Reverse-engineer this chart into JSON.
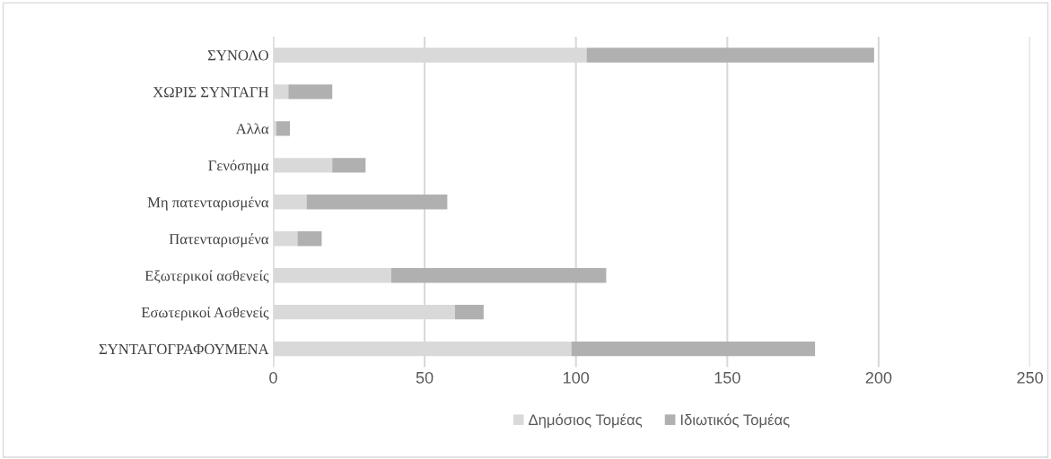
{
  "chart_data": {
    "type": "bar",
    "orientation": "horizontal",
    "stacked": true,
    "categories": [
      "ΣΥΝΟΛΟ",
      "ΧΩΡΙΣ ΣΥΝΤΑΓΗ",
      "Αλλα",
      "Γενόσημα",
      "Μη πατενταρισμένα",
      "Πατενταρισμένα",
      "Εξωτερικοί ασθενείς",
      "Εσωτερικοί Ασθενείς",
      "ΣΥΝΤΑΓΟΓΡΑΦΟΥΜΕΝΑ"
    ],
    "series": [
      {
        "name": "Δημόσιος Τομέας",
        "color": "#d9d9d9",
        "values": [
          103.5,
          5,
          1,
          19.5,
          11,
          8,
          39,
          60,
          98.5
        ]
      },
      {
        "name": "Ιδιωτικός Τομέας",
        "color": "#b0b0b0",
        "values": [
          95,
          14.5,
          4.5,
          11,
          46.5,
          8,
          71,
          9.5,
          80.5
        ]
      }
    ],
    "xlim": [
      0,
      250
    ],
    "xticks": [
      0,
      50,
      100,
      150,
      200,
      250
    ],
    "grid": "x",
    "legend": "bottom"
  }
}
